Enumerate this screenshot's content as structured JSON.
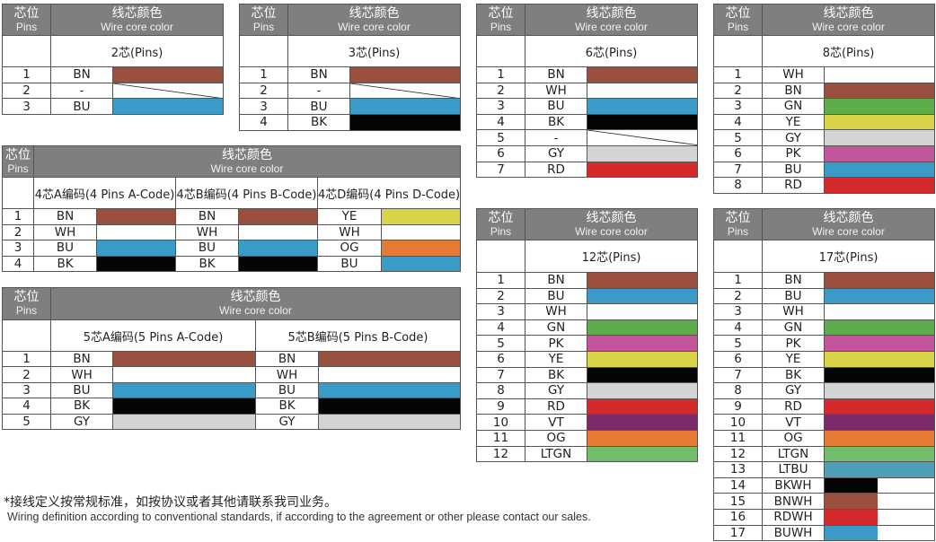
{
  "header": {
    "pins_cn": "芯位",
    "pins_en": "Pins",
    "color_cn": "线芯颜色",
    "color_en": "Wire core color"
  },
  "palette": {
    "BN": "#9b4f3e",
    "BU": "#3a9bc9",
    "BK": "#050505",
    "WH": "#ffffff",
    "GN": "#5dad4c",
    "YE": "#d8d54a",
    "GY": "#d4d4d4",
    "PK": "#c2559b",
    "RD": "#d42a2b",
    "VT": "#7b2b69",
    "OG": "#e47a34",
    "LTGN": "#72bf6b",
    "LTBU": "#509fb9",
    "BKWH": "#050505",
    "BNWH": "#9b4f3e",
    "RDWH": "#d42a2b",
    "BUWH": "#3a9bc9"
  },
  "tables": [
    {
      "groups": [
        "2芯(Pins)"
      ],
      "rows": [
        {
          "pin": "1",
          "codes": [
            "BN"
          ]
        },
        {
          "pin": "2",
          "codes": [
            "-"
          ]
        },
        {
          "pin": "3",
          "codes": [
            "BU"
          ]
        }
      ]
    },
    {
      "groups": [
        "3芯(Pins)"
      ],
      "rows": [
        {
          "pin": "1",
          "codes": [
            "BN"
          ]
        },
        {
          "pin": "2",
          "codes": [
            "-"
          ]
        },
        {
          "pin": "3",
          "codes": [
            "BU"
          ]
        },
        {
          "pin": "4",
          "codes": [
            "BK"
          ]
        }
      ]
    },
    {
      "groups": [
        "6芯(Pins)"
      ],
      "rows": [
        {
          "pin": "1",
          "codes": [
            "BN"
          ]
        },
        {
          "pin": "2",
          "codes": [
            "WH"
          ]
        },
        {
          "pin": "3",
          "codes": [
            "BU"
          ]
        },
        {
          "pin": "4",
          "codes": [
            "BK"
          ]
        },
        {
          "pin": "5",
          "codes": [
            "-"
          ]
        },
        {
          "pin": "6",
          "codes": [
            "GY"
          ]
        },
        {
          "pin": "7",
          "codes": [
            "RD"
          ]
        }
      ]
    },
    {
      "groups": [
        "8芯(Pins)"
      ],
      "rows": [
        {
          "pin": "1",
          "codes": [
            "WH"
          ]
        },
        {
          "pin": "2",
          "codes": [
            "BN"
          ]
        },
        {
          "pin": "3",
          "codes": [
            "GN"
          ]
        },
        {
          "pin": "4",
          "codes": [
            "YE"
          ]
        },
        {
          "pin": "5",
          "codes": [
            "GY"
          ]
        },
        {
          "pin": "6",
          "codes": [
            "PK"
          ]
        },
        {
          "pin": "7",
          "codes": [
            "BU"
          ]
        },
        {
          "pin": "8",
          "codes": [
            "RD"
          ]
        }
      ]
    },
    {
      "groups": [
        "4芯A编码(4 Pins A-Code)",
        "4芯B编码(4 Pins B-Code)",
        "4芯D编码(4 Pins D-Code)"
      ],
      "rows": [
        {
          "pin": "1",
          "codes": [
            "BN",
            "BN",
            "YE"
          ]
        },
        {
          "pin": "2",
          "codes": [
            "WH",
            "WH",
            "WH"
          ]
        },
        {
          "pin": "3",
          "codes": [
            "BU",
            "BU",
            "OG"
          ]
        },
        {
          "pin": "4",
          "codes": [
            "BK",
            "BK",
            "BU"
          ]
        }
      ]
    },
    {
      "groups": [
        "5芯A编码(5 Pins A-Code)",
        "5芯B编码(5 Pins B-Code)"
      ],
      "rows": [
        {
          "pin": "1",
          "codes": [
            "BN",
            "BN"
          ]
        },
        {
          "pin": "2",
          "codes": [
            "WH",
            "WH"
          ]
        },
        {
          "pin": "3",
          "codes": [
            "BU",
            "BU"
          ]
        },
        {
          "pin": "4",
          "codes": [
            "BK",
            "BK"
          ]
        },
        {
          "pin": "5",
          "codes": [
            "GY",
            "GY"
          ]
        }
      ]
    },
    {
      "groups": [
        "12芯(Pins)"
      ],
      "rows": [
        {
          "pin": "1",
          "codes": [
            "BN"
          ]
        },
        {
          "pin": "2",
          "codes": [
            "BU"
          ]
        },
        {
          "pin": "3",
          "codes": [
            "WH"
          ]
        },
        {
          "pin": "4",
          "codes": [
            "GN"
          ]
        },
        {
          "pin": "5",
          "codes": [
            "PK"
          ]
        },
        {
          "pin": "6",
          "codes": [
            "YE"
          ]
        },
        {
          "pin": "7",
          "codes": [
            "BK"
          ]
        },
        {
          "pin": "8",
          "codes": [
            "GY"
          ]
        },
        {
          "pin": "9",
          "codes": [
            "RD"
          ]
        },
        {
          "pin": "10",
          "codes": [
            "VT"
          ]
        },
        {
          "pin": "11",
          "codes": [
            "OG"
          ]
        },
        {
          "pin": "12",
          "codes": [
            "LTGN"
          ]
        }
      ]
    },
    {
      "groups": [
        "17芯(Pins)"
      ],
      "rows": [
        {
          "pin": "1",
          "codes": [
            "BN"
          ]
        },
        {
          "pin": "2",
          "codes": [
            "BU"
          ]
        },
        {
          "pin": "3",
          "codes": [
            "WH"
          ]
        },
        {
          "pin": "4",
          "codes": [
            "GN"
          ]
        },
        {
          "pin": "5",
          "codes": [
            "PK"
          ]
        },
        {
          "pin": "6",
          "codes": [
            "YE"
          ]
        },
        {
          "pin": "7",
          "codes": [
            "BK"
          ]
        },
        {
          "pin": "8",
          "codes": [
            "GY"
          ]
        },
        {
          "pin": "9",
          "codes": [
            "RD"
          ]
        },
        {
          "pin": "10",
          "codes": [
            "VT"
          ]
        },
        {
          "pin": "11",
          "codes": [
            "OG"
          ]
        },
        {
          "pin": "12",
          "codes": [
            "LTGN"
          ]
        },
        {
          "pin": "13",
          "codes": [
            "LTBU"
          ]
        },
        {
          "pin": "14",
          "codes": [
            "BKWH"
          ]
        },
        {
          "pin": "15",
          "codes": [
            "BNWH"
          ]
        },
        {
          "pin": "16",
          "codes": [
            "RDWH"
          ]
        },
        {
          "pin": "17",
          "codes": [
            "BUWH"
          ]
        }
      ]
    }
  ],
  "footnote": {
    "cn": "*接线定义按常规标准，如按协议或者其他请联系我司业务。",
    "en": "Wiring definition according to conventional standards, if according to the agreement or other please contact our sales."
  }
}
